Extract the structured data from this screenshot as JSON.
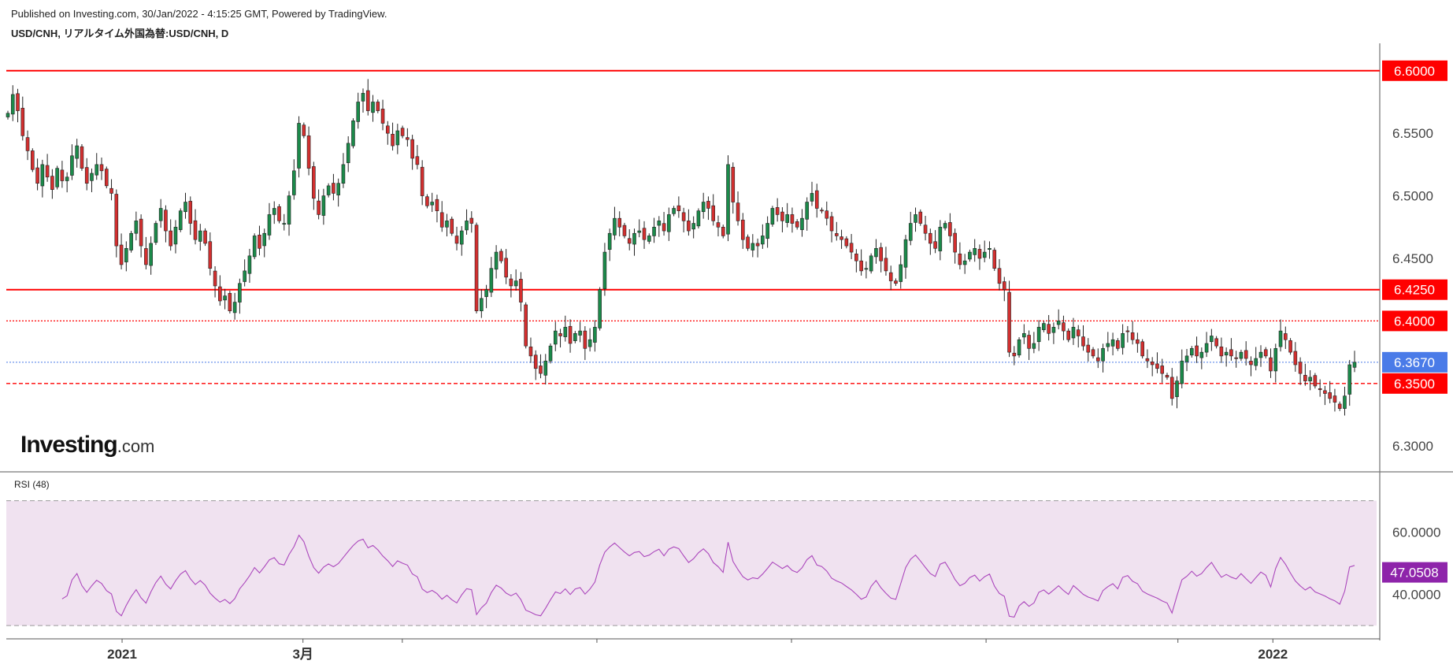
{
  "header": {
    "published": "Published on Investing.com, 30/Jan/2022 - 4:15:25 GMT, Powered by TradingView.",
    "symbol": "USD/CNH, リアルタイム外国為替:USD/CNH, D"
  },
  "logo": {
    "main": "Investing",
    "suffix": ".com"
  },
  "colors": {
    "up": "#1b8a4a",
    "down": "#d32f2f",
    "level": "#ff0000",
    "current": "#4a7be8",
    "rsi": "#ab47bc",
    "rsi_bg": "#f0e2f0",
    "rsi_badge": "#8e24aa"
  },
  "chart_data": [
    {
      "type": "candlestick",
      "title": "USD/CNH, リアルタイム外国為替:USD/CNH, D",
      "ylim": [
        6.28,
        6.62
      ],
      "y_ticks": [
        "6.5500",
        "6.5000",
        "6.4500",
        "6.3000"
      ],
      "x_tick_labels": [
        {
          "label": "2021",
          "pos": 0.0845
        },
        {
          "label": "3月",
          "pos": 0.2165
        },
        {
          "label": "2022",
          "pos": 0.9243
        }
      ],
      "x_minor_ticks": [
        0.289,
        0.431,
        0.573,
        0.715,
        0.855
      ],
      "horizontal_levels": [
        {
          "value": 6.6,
          "label": "6.6000",
          "style": "solid"
        },
        {
          "value": 6.425,
          "label": "6.4250",
          "style": "solid"
        },
        {
          "value": 6.4,
          "label": "6.4000",
          "style": "dotted"
        },
        {
          "value": 6.35,
          "label": "6.3500",
          "style": "dashed"
        }
      ],
      "current_price": {
        "value": 6.367,
        "label": "6.3670"
      },
      "closes": [
        6.566,
        6.581,
        6.568,
        6.548,
        6.536,
        6.521,
        6.51,
        6.525,
        6.515,
        6.505,
        6.522,
        6.512,
        6.515,
        6.532,
        6.54,
        6.522,
        6.51,
        6.518,
        6.525,
        6.52,
        6.508,
        6.502,
        6.46,
        6.445,
        6.458,
        6.47,
        6.48,
        6.46,
        6.445,
        6.462,
        6.478,
        6.49,
        6.472,
        6.46,
        6.475,
        6.488,
        6.495,
        6.478,
        6.465,
        6.472,
        6.462,
        6.442,
        6.428,
        6.416,
        6.42,
        6.408,
        6.415,
        6.43,
        6.44,
        6.452,
        6.468,
        6.458,
        6.47,
        6.485,
        6.49,
        6.48,
        6.478,
        6.5,
        6.52,
        6.558,
        6.548,
        6.522,
        6.498,
        6.485,
        6.5,
        6.508,
        6.502,
        6.51,
        6.525,
        6.542,
        6.56,
        6.575,
        6.582,
        6.568,
        6.575,
        6.568,
        6.558,
        6.55,
        6.54,
        6.552,
        6.548,
        6.545,
        6.53,
        6.525,
        6.5,
        6.492,
        6.495,
        6.488,
        6.475,
        6.48,
        6.47,
        6.462,
        6.472,
        6.48,
        6.478,
        6.408,
        6.418,
        6.425,
        6.442,
        6.455,
        6.448,
        6.435,
        6.428,
        6.432,
        6.415,
        6.38,
        6.372,
        6.362,
        6.358,
        6.368,
        6.38,
        6.392,
        6.388,
        6.395,
        6.382,
        6.39,
        6.392,
        6.378,
        6.385,
        6.395,
        6.425,
        6.455,
        6.47,
        6.482,
        6.475,
        6.468,
        6.462,
        6.47,
        6.472,
        6.465,
        6.468,
        6.475,
        6.48,
        6.472,
        6.485,
        6.49,
        6.488,
        6.48,
        6.472,
        6.478,
        6.488,
        6.495,
        6.49,
        6.48,
        6.475,
        6.468,
        6.525,
        6.495,
        6.48,
        6.465,
        6.458,
        6.462,
        6.46,
        6.468,
        6.478,
        6.49,
        6.485,
        6.48,
        6.485,
        6.478,
        6.475,
        6.482,
        6.495,
        6.502,
        6.49,
        6.488,
        6.482,
        6.472,
        6.468,
        6.465,
        6.46,
        6.455,
        6.448,
        6.44,
        6.442,
        6.452,
        6.458,
        6.448,
        6.44,
        6.432,
        6.43,
        6.445,
        6.465,
        6.478,
        6.485,
        6.478,
        6.47,
        6.462,
        6.458,
        6.475,
        6.478,
        6.468,
        6.455,
        6.445,
        6.448,
        6.455,
        6.458,
        6.45,
        6.455,
        6.458,
        6.442,
        6.43,
        6.425,
        6.375,
        6.372,
        6.385,
        6.39,
        6.378,
        6.382,
        6.395,
        6.398,
        6.39,
        6.395,
        6.4,
        6.392,
        6.385,
        6.395,
        6.388,
        6.38,
        6.375,
        6.372,
        6.368,
        6.378,
        6.382,
        6.385,
        6.378,
        6.39,
        6.392,
        6.385,
        6.382,
        6.372,
        6.368,
        6.365,
        6.362,
        6.358,
        6.355,
        6.338,
        6.352,
        6.368,
        6.372,
        6.378,
        6.372,
        6.375,
        6.382,
        6.388,
        6.38,
        6.372,
        6.375,
        6.372,
        6.37,
        6.375,
        6.37,
        6.365,
        6.37,
        6.375,
        6.372,
        6.36,
        6.378,
        6.392,
        6.385,
        6.375,
        6.365,
        6.358,
        6.352,
        6.355,
        6.348,
        6.345,
        6.342,
        6.338,
        6.335,
        6.33,
        6.34,
        6.365,
        6.367
      ]
    },
    {
      "type": "line",
      "title": "RSI (48)",
      "ylim": [
        26,
        79
      ],
      "y_ticks": [
        "60.0000",
        "40.0000"
      ],
      "band": [
        70,
        30
      ],
      "last_value": {
        "value": 47.05,
        "label": "47.0508"
      }
    }
  ]
}
